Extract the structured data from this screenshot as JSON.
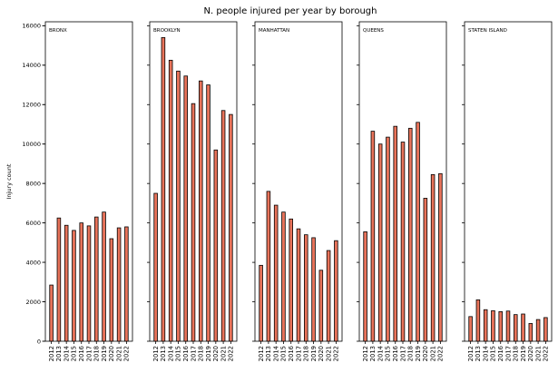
{
  "chart_data": {
    "type": "bar",
    "title": "N. people injured per year by borough",
    "ylabel": "Injury count",
    "xlabel": "",
    "ylim": [
      0,
      16200
    ],
    "yticks": [
      0,
      2000,
      4000,
      6000,
      8000,
      10000,
      12000,
      14000,
      16000
    ],
    "categories": [
      "2012",
      "2013",
      "2014",
      "2015",
      "2016",
      "2017",
      "2018",
      "2019",
      "2020",
      "2021",
      "2022"
    ],
    "bar_color": "#e8735a",
    "series": [
      {
        "name": "BRONX",
        "values": [
          2850,
          6250,
          5880,
          5620,
          6000,
          5850,
          6300,
          6550,
          5200,
          5750,
          5800
        ]
      },
      {
        "name": "BROOKLYN",
        "values": [
          7500,
          15400,
          14250,
          13700,
          13450,
          12050,
          13200,
          13000,
          9700,
          11700,
          11500
        ]
      },
      {
        "name": "MANHATTAN",
        "values": [
          3850,
          7600,
          6900,
          6550,
          6200,
          5700,
          5400,
          5250,
          3600,
          4600,
          5100
        ]
      },
      {
        "name": "QUEENS",
        "values": [
          5550,
          10650,
          10000,
          10350,
          10900,
          10100,
          10800,
          11100,
          7250,
          8450,
          8500
        ]
      },
      {
        "name": "STATEN ISLAND",
        "values": [
          1250,
          2100,
          1600,
          1550,
          1500,
          1530,
          1350,
          1380,
          900,
          1100,
          1200
        ]
      }
    ]
  }
}
